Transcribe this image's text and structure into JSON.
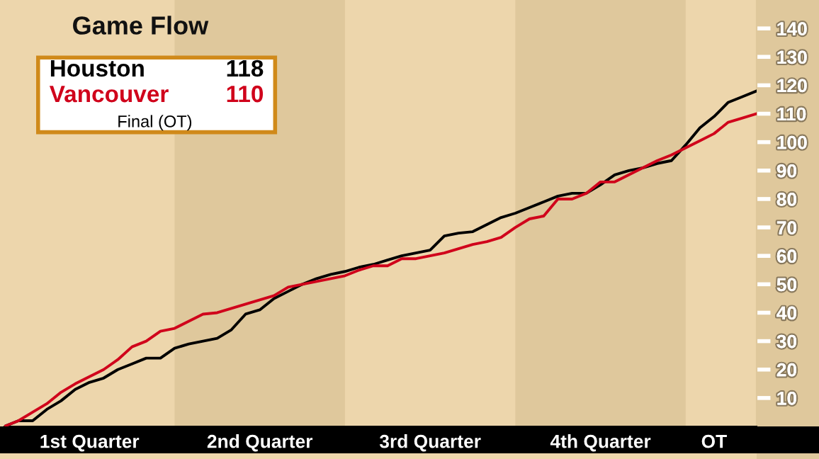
{
  "chart_data": {
    "type": "line",
    "title": "Game Flow",
    "categories": [
      null,
      null,
      null,
      null,
      null,
      null,
      "1st Quarter",
      null,
      null,
      null,
      null,
      null,
      null,
      null,
      null,
      null,
      null,
      null,
      "2nd Quarter",
      null,
      null,
      null,
      null,
      null,
      null,
      null,
      null,
      null,
      null,
      null,
      "3rd Quarter",
      null,
      null,
      null,
      null,
      null,
      null,
      null,
      null,
      null,
      null,
      null,
      "4th Quarter",
      null,
      null,
      null,
      null,
      null,
      null,
      null,
      "OT",
      null,
      null,
      null
    ],
    "ylim": [
      0,
      150
    ],
    "yticks": [
      10,
      20,
      30,
      40,
      50,
      60,
      70,
      80,
      90,
      100,
      110,
      120,
      130,
      140
    ],
    "grid": false,
    "legend": "top left",
    "marker": "none",
    "line_style": "solid",
    "annotations": [
      "118",
      "110",
      "Final (OT)"
    ],
    "series": [
      {
        "name": "Houston",
        "color": "#000000",
        "values": [
          0,
          2,
          2,
          6,
          9,
          13,
          15.5,
          17,
          20,
          22,
          24,
          24,
          27.5,
          29,
          30,
          31,
          34,
          39.5,
          41,
          45,
          47.5,
          50,
          52,
          53.5,
          54.5,
          56,
          57,
          58.5,
          60,
          61,
          62,
          67,
          68,
          68.5,
          71,
          73.5,
          75,
          77,
          79,
          81,
          82,
          82,
          85,
          88.5,
          90,
          91,
          92.5,
          93.5,
          99,
          105,
          109,
          114,
          116,
          118
        ]
      },
      {
        "name": "Vancouver",
        "color": "#d0021b",
        "values": [
          0,
          2,
          5,
          8,
          12,
          15,
          17.5,
          20,
          23.5,
          28,
          30,
          33.5,
          34.5,
          37,
          39.5,
          40,
          41.5,
          43,
          44.5,
          46,
          49,
          50,
          51,
          52,
          53,
          55,
          56.5,
          56.5,
          59,
          59,
          60,
          61,
          62.5,
          64,
          65,
          66.5,
          70,
          73,
          74,
          80,
          80,
          82,
          86,
          86,
          88.5,
          91,
          93.5,
          95.5,
          98,
          100.5,
          103,
          107,
          108.5,
          110
        ]
      }
    ]
  }
}
